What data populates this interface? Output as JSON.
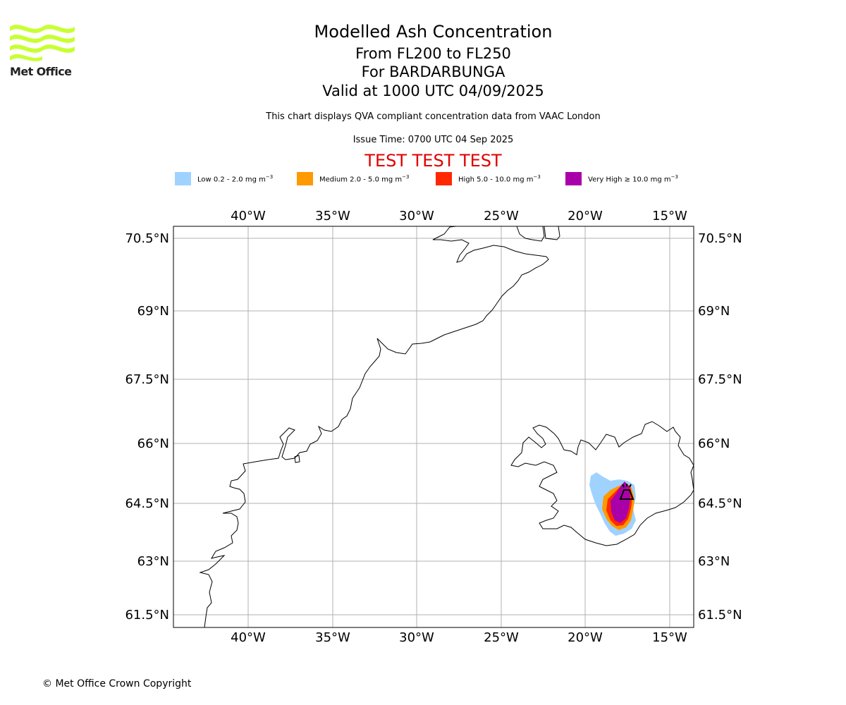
{
  "branding": {
    "logo_text": "Met Office",
    "logo_color": "#c8ff32"
  },
  "header": {
    "title": "Modelled Ash Concentration",
    "level_range": "From FL200 to FL250",
    "volcano": "For BARDARBUNGA",
    "valid_time": "Valid at 1000 UTC 04/09/2025",
    "description": "This chart displays QVA compliant concentration data from VAAC London",
    "issue_time": "Issue Time: 0700 UTC 04 Sep 2025",
    "test_banner": "TEST TEST TEST"
  },
  "legend": [
    {
      "label": "Low 0.2 - 2.0 mg m",
      "unit_exp": "−3",
      "color": "#a0d2ff"
    },
    {
      "label": "Medium 2.0 - 5.0 mg m",
      "unit_exp": "−3",
      "color": "#ff9900"
    },
    {
      "label": "High 5.0 - 10.0 mg m",
      "unit_exp": "−3",
      "color": "#ff2800"
    },
    {
      "label": "Very High ≥ 10.0 mg m",
      "unit_exp": "−3",
      "color": "#aa00aa"
    }
  ],
  "map": {
    "lon_ticks": [
      "40°W",
      "35°W",
      "30°W",
      "25°W",
      "20°W",
      "15°W"
    ],
    "lat_ticks": [
      "70.5°N",
      "69°N",
      "67.5°N",
      "66°N",
      "64.5°N",
      "63°N",
      "61.5°N"
    ],
    "volcano_icon": "volcano-icon"
  },
  "footer": {
    "copyright": "© Met Office Crown Copyright"
  }
}
